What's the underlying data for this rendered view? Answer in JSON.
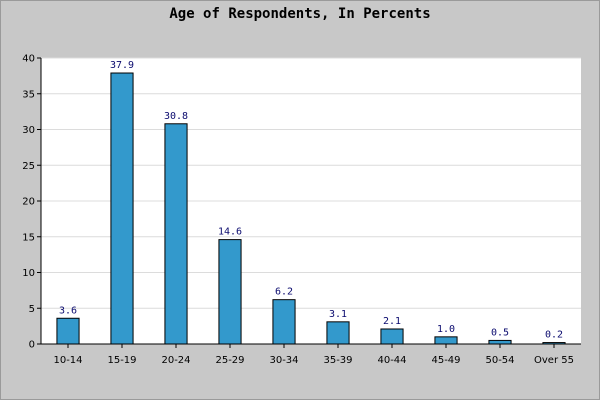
{
  "chart_data": {
    "type": "bar",
    "title": "Age of Respondents, In Percents",
    "xlabel": "",
    "ylabel": "",
    "categories": [
      "10-14",
      "15-19",
      "20-24",
      "25-29",
      "30-34",
      "35-39",
      "40-44",
      "45-49",
      "50-54",
      "Over 55"
    ],
    "values": [
      3.6,
      37.9,
      30.8,
      14.6,
      6.2,
      3.1,
      2.1,
      1.0,
      0.5,
      0.2
    ],
    "data_labels": [
      "3.6",
      "37.9",
      "30.8",
      "14.6",
      "6.2",
      "3.1",
      "2.1",
      "1.0",
      "0.5",
      "0.2"
    ],
    "ylim": [
      0,
      40
    ],
    "yticks": [
      0,
      5,
      10,
      15,
      20,
      25,
      30,
      35,
      40
    ],
    "grid": "horizontal",
    "legend": "none",
    "colors": {
      "bar": "#3399cc",
      "bar_outline": "#000000",
      "plot_background": "#ffffff",
      "page_background": "#c8c8c8",
      "gridline": "#dcdcdc",
      "data_label": "#0a0a6e"
    }
  }
}
